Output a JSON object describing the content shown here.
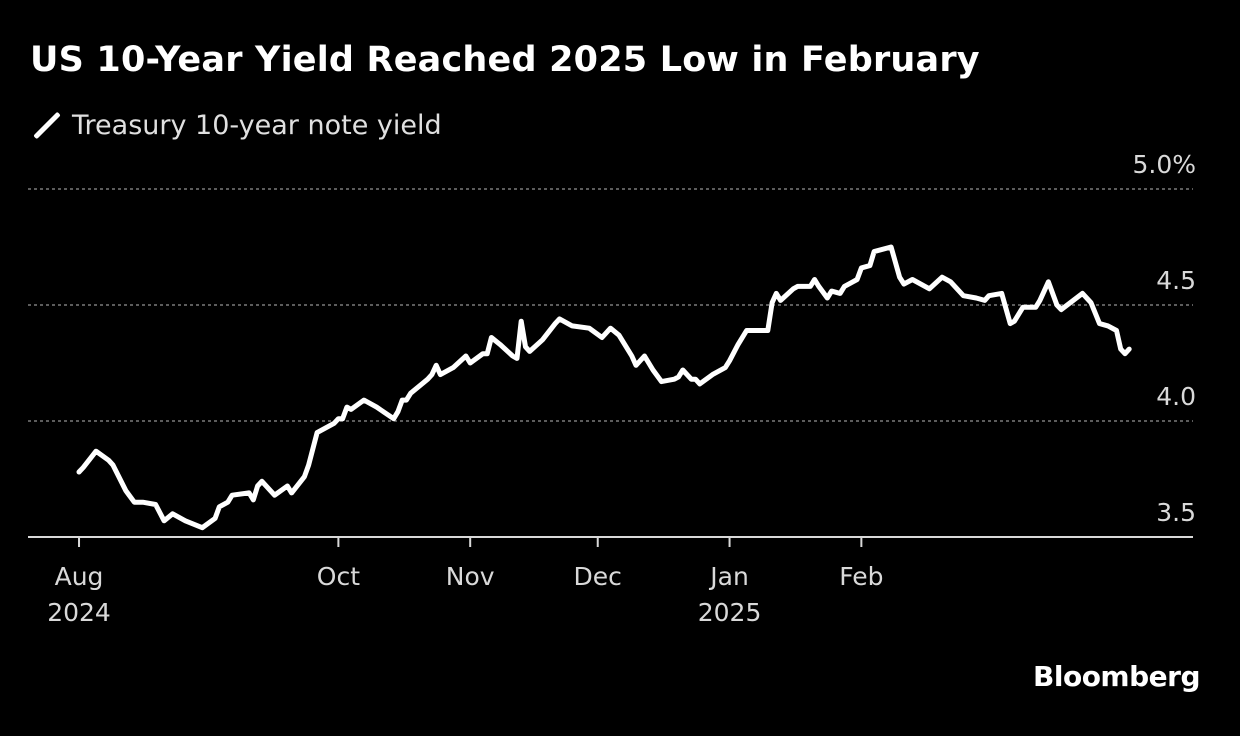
{
  "title": "US 10-Year Yield Reached 2025 Low in February",
  "legend": {
    "label": "Treasury 10-year note yield"
  },
  "source": "Bloomberg",
  "colors": {
    "background": "#000000",
    "line": "#ffffff",
    "grid": "#7a7a7a",
    "text": "#ffffff"
  },
  "chart_data": {
    "type": "line",
    "title": "US 10-Year Yield Reached 2025 Low in February",
    "xlabel": "",
    "ylabel": "",
    "ylim": [
      3.5,
      5.0
    ],
    "y_ticks": [
      "3.5",
      "4.0",
      "4.5",
      "5.0%"
    ],
    "y_tick_values": [
      3.5,
      4.0,
      4.5,
      5.0
    ],
    "grid": true,
    "legend_position": "top-left",
    "x_ticks": [
      {
        "date": "2024-08-01",
        "label": "Aug",
        "sublabel": "2024"
      },
      {
        "date": "2024-10-01",
        "label": "Oct",
        "sublabel": ""
      },
      {
        "date": "2024-11-01",
        "label": "Nov",
        "sublabel": ""
      },
      {
        "date": "2024-12-01",
        "label": "Dec",
        "sublabel": ""
      },
      {
        "date": "2025-01-01",
        "label": "Jan",
        "sublabel": "2025"
      },
      {
        "date": "2025-02-01",
        "label": "Feb",
        "sublabel": ""
      }
    ],
    "series": [
      {
        "name": "Treasury 10-year note yield",
        "points": [
          [
            "2024-08-01",
            3.78
          ],
          [
            "2024-08-02",
            3.8
          ],
          [
            "2024-08-05",
            3.87
          ],
          [
            "2024-08-08",
            3.83
          ],
          [
            "2024-08-09",
            3.81
          ],
          [
            "2024-08-12",
            3.7
          ],
          [
            "2024-08-14",
            3.65
          ],
          [
            "2024-08-16",
            3.65
          ],
          [
            "2024-08-19",
            3.64
          ],
          [
            "2024-08-21",
            3.57
          ],
          [
            "2024-08-23",
            3.6
          ],
          [
            "2024-08-26",
            3.57
          ],
          [
            "2024-08-30",
            3.54
          ],
          [
            "2024-09-02",
            3.58
          ],
          [
            "2024-09-03",
            3.63
          ],
          [
            "2024-09-05",
            3.65
          ],
          [
            "2024-09-06",
            3.68
          ],
          [
            "2024-09-10",
            3.69
          ],
          [
            "2024-09-11",
            3.66
          ],
          [
            "2024-09-12",
            3.72
          ],
          [
            "2024-09-13",
            3.74
          ],
          [
            "2024-09-16",
            3.68
          ],
          [
            "2024-09-19",
            3.72
          ],
          [
            "2024-09-20",
            3.69
          ],
          [
            "2024-09-23",
            3.76
          ],
          [
            "2024-09-24",
            3.81
          ],
          [
            "2024-09-26",
            3.95
          ],
          [
            "2024-09-30",
            3.99
          ],
          [
            "2024-10-01",
            4.01
          ],
          [
            "2024-10-02",
            4.01
          ],
          [
            "2024-10-03",
            4.06
          ],
          [
            "2024-10-04",
            4.05
          ],
          [
            "2024-10-07",
            4.09
          ],
          [
            "2024-10-10",
            4.06
          ],
          [
            "2024-10-14",
            4.01
          ],
          [
            "2024-10-15",
            4.04
          ],
          [
            "2024-10-16",
            4.09
          ],
          [
            "2024-10-17",
            4.09
          ],
          [
            "2024-10-18",
            4.12
          ],
          [
            "2024-10-22",
            4.18
          ],
          [
            "2024-10-23",
            4.2
          ],
          [
            "2024-10-24",
            4.24
          ],
          [
            "2024-10-25",
            4.2
          ],
          [
            "2024-10-28",
            4.23
          ],
          [
            "2024-10-31",
            4.28
          ],
          [
            "2024-11-01",
            4.25
          ],
          [
            "2024-11-04",
            4.29
          ],
          [
            "2024-11-05",
            4.29
          ],
          [
            "2024-11-06",
            4.36
          ],
          [
            "2024-11-08",
            4.33
          ],
          [
            "2024-11-11",
            4.28
          ],
          [
            "2024-11-12",
            4.27
          ],
          [
            "2024-11-13",
            4.43
          ],
          [
            "2024-11-14",
            4.32
          ],
          [
            "2024-11-15",
            4.3
          ],
          [
            "2024-11-18",
            4.35
          ],
          [
            "2024-11-21",
            4.42
          ],
          [
            "2024-11-22",
            4.44
          ],
          [
            "2024-11-25",
            4.41
          ],
          [
            "2024-11-29",
            4.4
          ],
          [
            "2024-12-02",
            4.36
          ],
          [
            "2024-12-04",
            4.4
          ],
          [
            "2024-12-06",
            4.37
          ],
          [
            "2024-12-09",
            4.28
          ],
          [
            "2024-12-10",
            4.24
          ],
          [
            "2024-12-12",
            4.28
          ],
          [
            "2024-12-14",
            4.22
          ],
          [
            "2024-12-16",
            4.17
          ],
          [
            "2024-12-19",
            4.18
          ],
          [
            "2024-12-20",
            4.19
          ],
          [
            "2024-12-21",
            4.22
          ],
          [
            "2024-12-23",
            4.18
          ],
          [
            "2024-12-24",
            4.18
          ],
          [
            "2024-12-25",
            4.16
          ],
          [
            "2024-12-28",
            4.2
          ],
          [
            "2024-12-31",
            4.23
          ],
          [
            "2025-01-01",
            4.26
          ],
          [
            "2025-01-03",
            4.33
          ],
          [
            "2025-01-05",
            4.39
          ],
          [
            "2025-01-10",
            4.39
          ],
          [
            "2025-01-11",
            4.51
          ],
          [
            "2025-01-12",
            4.55
          ],
          [
            "2025-01-13",
            4.52
          ],
          [
            "2025-01-16",
            4.57
          ],
          [
            "2025-01-17",
            4.58
          ],
          [
            "2025-01-20",
            4.58
          ],
          [
            "2025-01-21",
            4.61
          ],
          [
            "2025-01-22",
            4.58
          ],
          [
            "2025-01-24",
            4.53
          ],
          [
            "2025-01-25",
            4.56
          ],
          [
            "2025-01-27",
            4.55
          ],
          [
            "2025-01-28",
            4.58
          ],
          [
            "2025-01-30",
            4.6
          ],
          [
            "2025-01-31",
            4.61
          ],
          [
            "2025-02-01",
            4.66
          ],
          [
            "2025-02-03",
            4.67
          ],
          [
            "2025-02-04",
            4.73
          ],
          [
            "2025-02-08",
            4.75
          ],
          [
            "2025-02-10",
            4.62
          ],
          [
            "2025-02-11",
            4.59
          ],
          [
            "2025-02-13",
            4.61
          ],
          [
            "2025-02-17",
            4.57
          ],
          [
            "2025-02-20",
            4.62
          ],
          [
            "2025-02-22",
            4.6
          ],
          [
            "2025-02-25",
            4.54
          ],
          [
            "2025-02-28",
            4.53
          ],
          [
            "2025-03-02",
            4.52
          ],
          [
            "2025-03-03",
            4.54
          ],
          [
            "2025-03-06",
            4.55
          ],
          [
            "2025-03-08",
            4.42
          ],
          [
            "2025-03-09",
            4.43
          ],
          [
            "2025-03-11",
            4.49
          ],
          [
            "2025-03-14",
            4.49
          ],
          [
            "2025-03-15",
            4.52
          ],
          [
            "2025-03-17",
            4.6
          ],
          [
            "2025-03-19",
            4.5
          ],
          [
            "2025-03-20",
            4.48
          ],
          [
            "2025-03-25",
            4.55
          ],
          [
            "2025-03-27",
            4.51
          ],
          [
            "2025-03-29",
            4.42
          ],
          [
            "2025-03-31",
            4.41
          ],
          [
            "2025-04-02",
            4.39
          ],
          [
            "2025-04-03",
            4.31
          ],
          [
            "2025-04-04",
            4.29
          ],
          [
            "2025-04-05",
            4.31
          ]
        ]
      }
    ]
  }
}
